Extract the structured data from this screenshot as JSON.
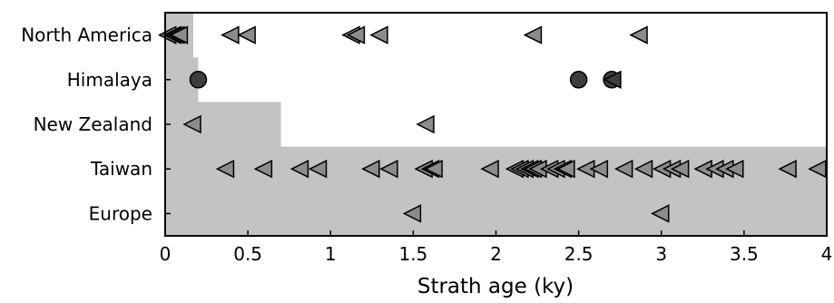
{
  "chart_data": {
    "type": "scatter",
    "xlabel": "Strath age (ky)",
    "ylabel": "",
    "xlim": [
      0,
      4
    ],
    "xticks": [
      0,
      0.5,
      1,
      1.5,
      2,
      2.5,
      3,
      3.5,
      4
    ],
    "xtick_labels": [
      "0",
      "0.5",
      "1",
      "1.5",
      "2",
      "2.5",
      "3",
      "3.5",
      "4"
    ],
    "categories": [
      "North America",
      "Himalaya",
      "New Zealand",
      "Taiwan",
      "Europe"
    ],
    "grid": false,
    "shaded_region_boundary": [
      {
        "category": "North America",
        "x": 0.17
      },
      {
        "category": "Himalaya",
        "x": 0.2
      },
      {
        "category": "New Zealand",
        "x": 0.7
      },
      {
        "category": "Taiwan",
        "x": 4
      },
      {
        "category": "Europe",
        "x": 4
      }
    ],
    "series": [
      {
        "category": "North America",
        "marker": "triangle-left",
        "color": "#8c8c8c",
        "values": [
          0.02,
          0.05,
          0.07,
          0.09,
          0.4,
          0.5,
          1.13,
          1.16,
          1.3,
          2.23,
          2.87
        ]
      },
      {
        "category": "Himalaya",
        "marker": "circle",
        "color": "#3d3d3d",
        "values": [
          0.2,
          2.5,
          2.7
        ]
      },
      {
        "category": "Himalaya",
        "marker": "triangle-left",
        "color": "#3d3d3d",
        "values": [
          2.71
        ]
      },
      {
        "category": "New Zealand",
        "marker": "triangle-left",
        "color": "#8c8c8c",
        "values": [
          0.17,
          1.58
        ]
      },
      {
        "category": "Taiwan",
        "marker": "triangle-left",
        "color": "#8c8c8c",
        "values": [
          0.37,
          0.6,
          0.82,
          0.93,
          1.25,
          1.36,
          1.57,
          1.61,
          1.63,
          1.97,
          2.12,
          2.15,
          2.18,
          2.21,
          2.23,
          2.26,
          2.33,
          2.37,
          2.41,
          2.43,
          2.55,
          2.63,
          2.78,
          2.9,
          3.01,
          3.07,
          3.12,
          3.26,
          3.33,
          3.39,
          3.45,
          3.77,
          3.95
        ]
      },
      {
        "category": "Europe",
        "marker": "triangle-left",
        "color": "#8c8c8c",
        "values": [
          1.5,
          3.0
        ]
      }
    ],
    "colors": {
      "shade": "#c3c3c3",
      "axis": "#000000"
    }
  }
}
